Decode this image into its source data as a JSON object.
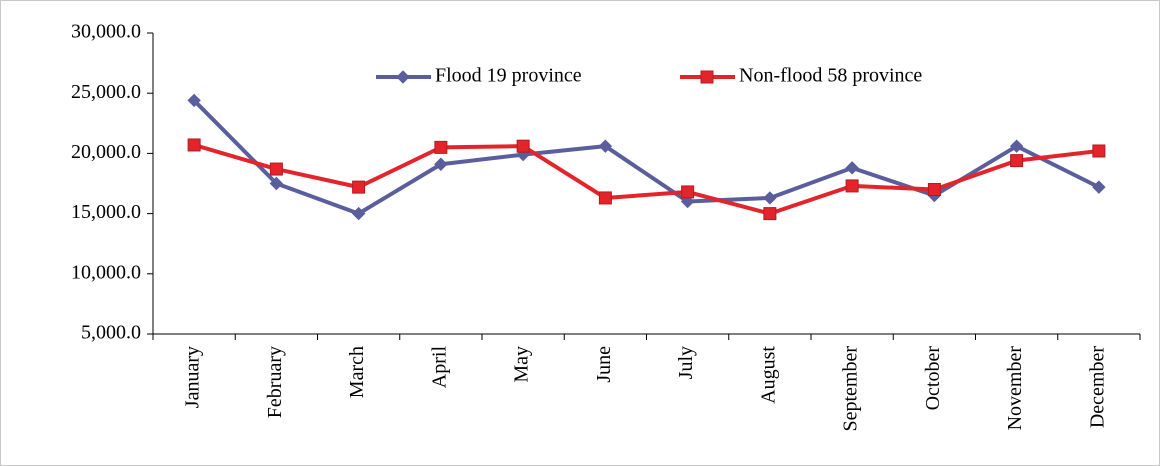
{
  "chart_data": {
    "type": "line",
    "categories": [
      "January",
      "February",
      "March",
      "April",
      "May",
      "June",
      "July",
      "August",
      "September",
      "October",
      "November",
      "December"
    ],
    "series": [
      {
        "name": "Flood 19 province",
        "color": "#5b5e9c",
        "marker": "diamond",
        "values": [
          24400,
          17500,
          15000,
          19100,
          19900,
          20600,
          16000,
          16300,
          18800,
          16500,
          20600,
          17200
        ]
      },
      {
        "name": "Non-flood 58 province",
        "color": "#e3242b",
        "marker": "square",
        "values": [
          20700,
          18700,
          17200,
          20500,
          20600,
          16300,
          16800,
          15000,
          17300,
          17000,
          19400,
          20200
        ]
      }
    ],
    "ylim": [
      5000,
      30000
    ],
    "yticks": [
      {
        "value": 5000,
        "label": "5,000.0"
      },
      {
        "value": 10000,
        "label": "10,000.0"
      },
      {
        "value": 15000,
        "label": "15,000.0"
      },
      {
        "value": 20000,
        "label": "20,000.0"
      },
      {
        "value": 25000,
        "label": "25,000.0"
      },
      {
        "value": 30000,
        "label": "30,000.0"
      }
    ],
    "grid": false,
    "legend": "top"
  }
}
